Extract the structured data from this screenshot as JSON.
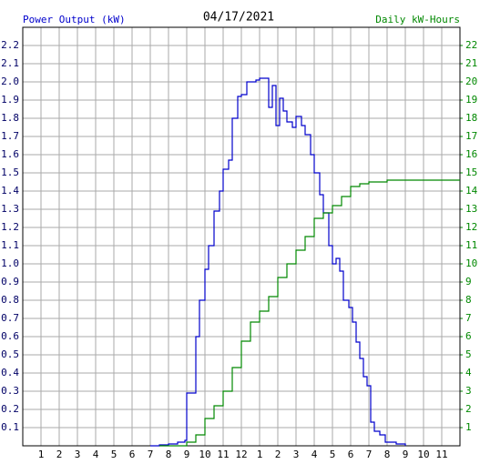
{
  "chart_data": {
    "type": "line",
    "title": "04/17/2021",
    "ylabel": "Power Output (kW)",
    "y2label": "Daily kW-Hours",
    "drawstyle": "steps-post",
    "grid": true,
    "xlim": [
      0,
      24
    ],
    "xticks": [
      1,
      2,
      3,
      4,
      5,
      6,
      7,
      8,
      9,
      10,
      11,
      12,
      {
        "value": 13,
        "label": "1"
      },
      {
        "value": 14,
        "label": "2"
      },
      {
        "value": 15,
        "label": "3"
      },
      {
        "value": 16,
        "label": "4"
      },
      {
        "value": 17,
        "label": "5"
      },
      {
        "value": 18,
        "label": "6"
      },
      {
        "value": 19,
        "label": "7"
      },
      {
        "value": 20,
        "label": "8"
      },
      {
        "value": 21,
        "label": "9"
      },
      {
        "value": 22,
        "label": "10"
      },
      {
        "value": 23,
        "label": "11"
      }
    ],
    "ylim": [
      0,
      2.3
    ],
    "yticks": [
      0.1,
      0.2,
      0.3,
      0.4,
      0.5,
      0.6,
      0.7,
      0.8,
      0.9,
      {
        "value": 1,
        "label": "1.0"
      },
      1.1,
      1.2,
      1.3,
      1.4,
      1.5,
      1.6,
      1.7,
      1.8,
      1.9,
      {
        "value": 2,
        "label": "2.0"
      },
      2.1,
      2.2
    ],
    "y2lim": [
      0,
      23
    ],
    "y2ticks": [
      1,
      2,
      3,
      4,
      5,
      6,
      7,
      8,
      9,
      10,
      11,
      12,
      13,
      14,
      15,
      16,
      17,
      18,
      19,
      20,
      21,
      22
    ],
    "series": [
      {
        "name": "Power Output (kW)",
        "color": "#0000cc",
        "x": [
          7,
          7.5,
          8,
          8.5,
          8.9,
          9,
          9.3,
          9.5,
          9.7,
          10,
          10.2,
          10.5,
          10.8,
          11,
          11.3,
          11.5,
          11.8,
          12,
          12.3,
          12.8,
          13,
          13.3,
          13.5,
          13.7,
          13.9,
          14.1,
          14.3,
          14.5,
          14.8,
          15,
          15.3,
          15.5,
          15.8,
          16,
          16.3,
          16.5,
          16.8,
          17,
          17.2,
          17.4,
          17.6,
          17.9,
          18.1,
          18.3,
          18.5,
          18.7,
          18.9,
          19.1,
          19.3,
          19.6,
          19.9,
          20.5,
          21
        ],
        "values": [
          0,
          0.005,
          0.01,
          0.02,
          0.03,
          0.29,
          0.29,
          0.6,
          0.8,
          0.97,
          1.1,
          1.29,
          1.4,
          1.52,
          1.57,
          1.8,
          1.92,
          1.93,
          2.0,
          2.01,
          2.02,
          2.02,
          1.86,
          1.98,
          1.76,
          1.91,
          1.84,
          1.78,
          1.75,
          1.81,
          1.76,
          1.71,
          1.6,
          1.5,
          1.38,
          1.28,
          1.1,
          1.0,
          1.03,
          0.96,
          0.8,
          0.76,
          0.68,
          0.57,
          0.48,
          0.38,
          0.33,
          0.13,
          0.08,
          0.06,
          0.02,
          0.01,
          0
        ]
      },
      {
        "name": "Daily kW-Hours",
        "color": "#008800",
        "axis": "y2",
        "x": [
          7.5,
          9,
          9.5,
          10,
          10.5,
          11,
          11.5,
          12,
          12.5,
          13,
          13.5,
          14,
          14.5,
          15,
          15.5,
          16,
          16.5,
          17,
          17.5,
          18,
          18.5,
          19,
          20,
          24
        ],
        "values": [
          0,
          0.2,
          0.6,
          1.5,
          2.2,
          3,
          4.3,
          5.75,
          6.8,
          7.4,
          8.2,
          9.25,
          10.0,
          10.75,
          11.5,
          12.5,
          12.8,
          13.2,
          13.7,
          14.25,
          14.4,
          14.5,
          14.6,
          14.6
        ]
      }
    ]
  }
}
